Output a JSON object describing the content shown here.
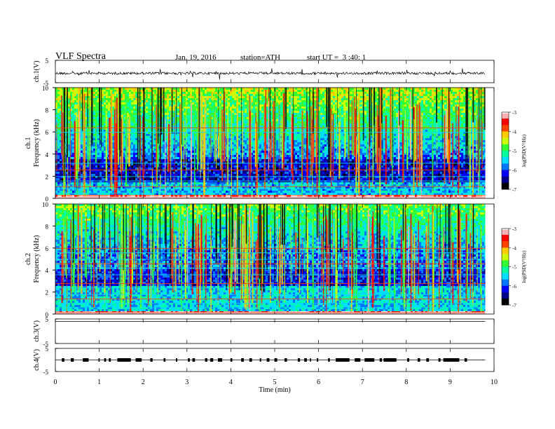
{
  "header": {
    "title": "VLF Spectra",
    "date": "Jan. 19, 2016",
    "station": "station=ATH",
    "start_ut": "start UT =  3 :40: 1"
  },
  "colors": {
    "colorbar": [
      "#000000",
      "#00008b",
      "#0000ff",
      "#0077ff",
      "#00ddff",
      "#00ffa0",
      "#33ff33",
      "#ccff00",
      "#ffcc00",
      "#ff4400",
      "#ff0000",
      "#ffb0b0",
      "#ffffff"
    ]
  },
  "chart_data": [
    {
      "type": "line",
      "panel": "ch1-waveform",
      "ylabel": "ch.1(V)",
      "ylim": [
        -5,
        5
      ],
      "yticks": [
        "5",
        "-5"
      ],
      "xlim": [
        0,
        10
      ],
      "baseline_v": -0.8,
      "series": [
        {
          "x_range": [
            0,
            9.8
          ],
          "level": -0.8
        }
      ]
    },
    {
      "type": "heatmap",
      "panel": "ch1-spectrogram",
      "ylabel": "Frequency (kHz)",
      "channel": "ch.1",
      "ylim": [
        0,
        10
      ],
      "yticks": [
        "10",
        "8",
        "6",
        "4",
        "2",
        "0"
      ],
      "xlim": [
        0,
        9.8
      ],
      "colorbar": {
        "label": "log(PSD(V²/Hz)",
        "range": [
          -7,
          -3
        ],
        "ticks": [
          "-3",
          "-4",
          "-5",
          "-6",
          "-7"
        ]
      }
    },
    {
      "type": "heatmap",
      "panel": "ch2-spectrogram",
      "ylabel": "Frequency (kHz)",
      "channel": "ch.2",
      "ylim": [
        0,
        10
      ],
      "yticks": [
        "10",
        "8",
        "6",
        "4",
        "2",
        "0"
      ],
      "xlim": [
        0,
        9.8
      ],
      "colorbar": {
        "label": "log(PSD(V²/Hz)",
        "range": [
          -7,
          -3
        ],
        "ticks": [
          "-3",
          "-4",
          "-5",
          "-6",
          "-7"
        ]
      }
    },
    {
      "type": "line",
      "panel": "ch3-waveform",
      "ylabel": "ch.3(V)",
      "ylim": [
        -5,
        5
      ],
      "yticks": [
        "5",
        "-5"
      ],
      "series": [
        {
          "x_range": [
            0,
            9.8
          ],
          "level": 4.0
        }
      ]
    },
    {
      "type": "line",
      "panel": "ch4-waveform",
      "ylabel": "ch.4(V)",
      "ylim": [
        -5,
        5
      ],
      "yticks": [
        "5",
        "-5"
      ],
      "series": [
        {
          "x_range": [
            0,
            9.8
          ],
          "level": 0.0
        }
      ]
    }
  ],
  "xaxis": {
    "label": "Time  (min)",
    "ticks": [
      "0",
      "1",
      "2",
      "3",
      "4",
      "5",
      "6",
      "7",
      "8",
      "9",
      "10"
    ],
    "range": [
      0,
      10
    ]
  }
}
